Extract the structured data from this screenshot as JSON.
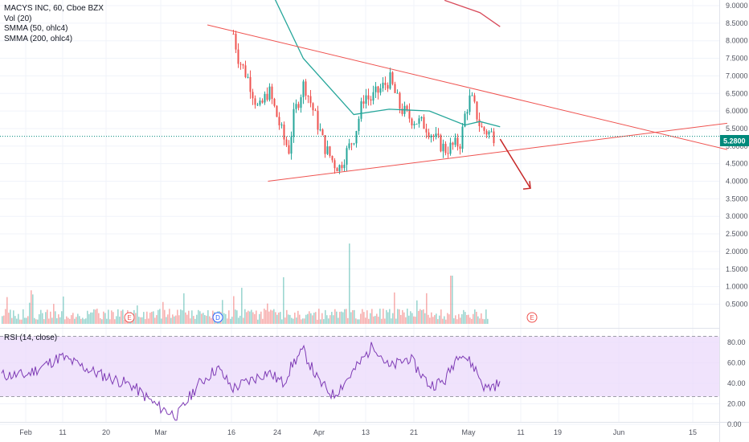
{
  "header": {
    "symbol_line": "MACYS INC, 60, Cboe BZX",
    "vol_label": "Vol (20)",
    "smma50_label": "SMMA (50, ohlc4)",
    "smma200_label": "SMMA (200, ohlc4)",
    "rsi_label": "RSI (14, close)"
  },
  "price_axis": {
    "ticks": [
      "9.0000",
      "8.5000",
      "8.0000",
      "7.5000",
      "7.0000",
      "6.5000",
      "6.0000",
      "5.5000",
      "5.0000",
      "4.5000",
      "4.0000",
      "3.5000",
      "3.0000",
      "2.5000",
      "2.0000",
      "1.5000",
      "1.0000",
      "0.5000"
    ],
    "current_price": "5.2800",
    "current_price_color": "#00897b"
  },
  "rsi_axis": {
    "ticks": [
      "80.00",
      "60.00",
      "40.00",
      "20.00",
      "0.00"
    ]
  },
  "time_axis": {
    "labels": [
      "Feb",
      "11",
      "20",
      "Mar",
      "16",
      "24",
      "Apr",
      "13",
      "21",
      "May",
      "11",
      "19",
      "Jun",
      "15"
    ]
  },
  "events": [
    "E",
    "D",
    "E"
  ],
  "colors": {
    "up": "#26a69a",
    "down": "#ef5350",
    "smma50": "#26a69a",
    "smma200": "#d84a5a",
    "trendline": "#ef5350",
    "rsi_line": "#7e3bb5",
    "rsi_band": "#e9d7fb"
  },
  "chart_data": {
    "type": "candlestick",
    "symbol": "MACYS INC",
    "interval": "60",
    "exchange": "Cboe BZX",
    "price_ylim": [
      0.5,
      9.0
    ],
    "rsi_ylim": [
      0,
      80
    ],
    "rsi_levels": [
      70,
      30
    ],
    "current_price": 5.28,
    "indicators": [
      "Vol (20)",
      "SMMA (50, ohlc4)",
      "SMMA (200, ohlc4)",
      "RSI (14, close)"
    ],
    "price_path": [
      [
        "Mar 13",
        8.2
      ],
      [
        "Mar 14",
        7.5
      ],
      [
        "Mar 16",
        6.9
      ],
      [
        "Mar 18",
        6.0
      ],
      [
        "Mar 20",
        6.6
      ],
      [
        "Mar 23",
        5.2
      ],
      [
        "Mar 24",
        4.9
      ],
      [
        "Mar 25",
        5.9
      ],
      [
        "Mar 27",
        6.8
      ],
      [
        "Mar 30",
        5.5
      ],
      [
        "Mar 31",
        5.0
      ],
      [
        "Apr 2",
        4.5
      ],
      [
        "Apr 3",
        4.4
      ],
      [
        "Apr 6",
        5.3
      ],
      [
        "Apr 8",
        6.5
      ],
      [
        "Apr 9",
        6.3
      ],
      [
        "Apr 13",
        6.9
      ],
      [
        "Apr 15",
        6.1
      ],
      [
        "Apr 17",
        5.8
      ],
      [
        "Apr 20",
        5.6
      ],
      [
        "Apr 22",
        5.2
      ],
      [
        "Apr 24",
        4.9
      ],
      [
        "Apr 27",
        5.1
      ],
      [
        "Apr 28",
        6.0
      ],
      [
        "Apr 29",
        6.4
      ],
      [
        "Apr 30",
        6.0
      ],
      [
        "May 1",
        5.5
      ],
      [
        "May 4",
        5.28
      ]
    ],
    "smma50": [
      [
        "Mar 17",
        10.5
      ],
      [
        "Mar 27",
        7.5
      ],
      [
        "Apr 6",
        5.9
      ],
      [
        "Apr 13",
        6.05
      ],
      [
        "Apr 21",
        6.0
      ],
      [
        "Apr 28",
        5.6
      ],
      [
        "May 1",
        5.7
      ],
      [
        "May 5",
        5.55
      ]
    ],
    "smma200": [
      [
        "Apr 24",
        9.15
      ],
      [
        "May 1",
        8.8
      ],
      [
        "May 5",
        8.4
      ]
    ],
    "trendlines": [
      {
        "name": "upper",
        "from": [
          "Mar 8",
          8.45
        ],
        "to": [
          "Jun 19",
          4.9
        ]
      },
      {
        "name": "lower",
        "from": [
          "Mar 20",
          4.0
        ],
        "to": [
          "Jun 19",
          5.65
        ]
      },
      {
        "name": "projection",
        "from": [
          "May 5",
          5.2
        ],
        "to": [
          "May 11",
          3.8
        ]
      }
    ],
    "rsi_path": [
      [
        "Feb 1",
        48
      ],
      [
        "Feb 8",
        66
      ],
      [
        "Feb 15",
        50
      ],
      [
        "Feb 22",
        38
      ],
      [
        "Feb 27",
        18
      ],
      [
        "Mar 2",
        8
      ],
      [
        "Mar 6",
        38
      ],
      [
        "Mar 10",
        55
      ],
      [
        "Mar 13",
        35
      ],
      [
        "Mar 17",
        44
      ],
      [
        "Mar 20",
        51
      ],
      [
        "Mar 23",
        40
      ],
      [
        "Mar 25",
        60
      ],
      [
        "Mar 27",
        72
      ],
      [
        "Mar 30",
        42
      ],
      [
        "Apr 2",
        28
      ],
      [
        "Apr 6",
        52
      ],
      [
        "Apr 10",
        78
      ],
      [
        "Apr 13",
        55
      ],
      [
        "Apr 17",
        65
      ],
      [
        "Apr 21",
        38
      ],
      [
        "Apr 24",
        42
      ],
      [
        "Apr 27",
        72
      ],
      [
        "Apr 30",
        55
      ],
      [
        "May 2",
        35
      ],
      [
        "May 5",
        40
      ]
    ]
  }
}
